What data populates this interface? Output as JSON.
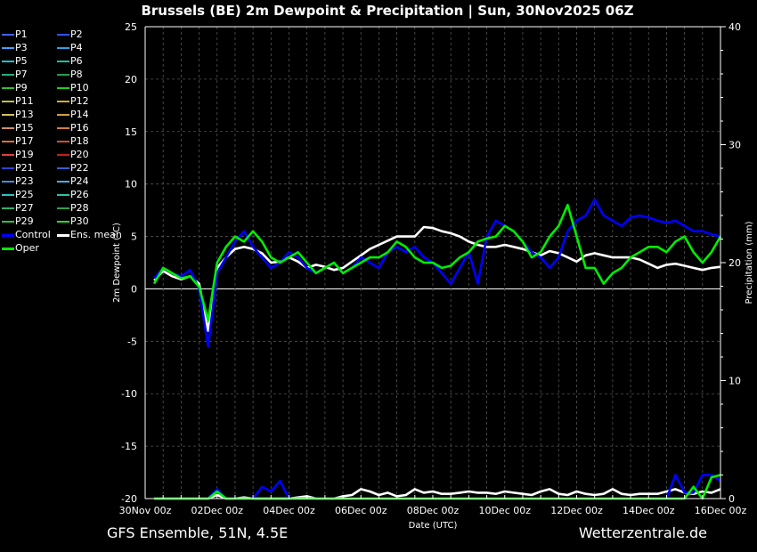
{
  "chart_data": {
    "type": "line",
    "title": "Brussels  (BE)  2m Dewpoint & Precipitation | Sun, 30Nov2025 06Z",
    "xlabel": "Date (UTC)",
    "ylabel": "2m Dewpoint (°C)",
    "y2label": "Precipitation (mm)",
    "ylim": [
      -20,
      25
    ],
    "y2lim": [
      0,
      40
    ],
    "yticks": [
      25,
      20,
      15,
      10,
      5,
      0,
      -5,
      -10,
      -15,
      -20
    ],
    "y2ticks": [
      40,
      30,
      20,
      10,
      0
    ],
    "xticks": [
      "30Nov 00z",
      "02Dec 00z",
      "04Dec 00z",
      "06Dec 00z",
      "08Dec 00z",
      "10Dec 00z",
      "12Dec 00z",
      "14Dec 00z",
      "16Dec 00z"
    ],
    "grid": true,
    "legend_placement": "left",
    "x_hours": [
      6,
      12,
      18,
      24,
      30,
      36,
      42,
      48,
      54,
      60,
      66,
      72,
      78,
      84,
      90,
      96,
      102,
      108,
      114,
      120,
      126,
      132,
      138,
      144,
      150,
      156,
      162,
      168,
      174,
      180,
      186,
      192,
      198,
      204,
      210,
      216,
      222,
      228,
      234,
      240,
      246,
      252,
      258,
      264,
      270,
      276,
      282,
      288,
      294,
      300,
      306,
      312,
      318,
      324,
      330,
      336,
      342,
      348,
      354,
      360,
      366,
      372,
      378,
      384
    ],
    "series": [
      {
        "name": "Ens. mean",
        "color": "#ffffff",
        "values": [
          0.8,
          1.7,
          1.2,
          0.9,
          1.2,
          0.5,
          -4.0,
          2.0,
          3.0,
          3.8,
          4.0,
          3.8,
          3.4,
          2.5,
          2.6,
          3.0,
          2.6,
          2.0,
          2.3,
          2.1,
          1.8,
          2.0,
          2.6,
          3.2,
          3.8,
          4.2,
          4.6,
          5.0,
          5.0,
          5.0,
          5.9,
          5.8,
          5.5,
          5.3,
          5.0,
          4.5,
          4.2,
          4.0,
          4.0,
          4.2,
          4.0,
          3.8,
          3.5,
          3.2,
          3.6,
          3.4,
          3.0,
          2.6,
          3.2,
          3.4,
          3.2,
          3.0,
          3.0,
          3.0,
          2.8,
          2.4,
          2.0,
          2.3,
          2.4,
          2.2,
          2.0,
          1.8,
          2.0,
          2.1
        ]
      },
      {
        "name": "Control",
        "color": "#0000ff",
        "values": [
          1.0,
          2.0,
          1.5,
          1.2,
          1.8,
          0.0,
          -5.5,
          1.5,
          3.0,
          4.5,
          5.5,
          4.0,
          3.0,
          2.0,
          2.5,
          3.5,
          3.0,
          2.0,
          1.5,
          2.0,
          2.5,
          1.5,
          2.0,
          3.0,
          2.5,
          2.0,
          3.5,
          4.0,
          3.5,
          4.0,
          3.0,
          2.5,
          1.5,
          0.5,
          2.0,
          3.5,
          0.5,
          5.0,
          6.5,
          6.0,
          5.5,
          4.5,
          3.5,
          3.0,
          2.0,
          3.0,
          5.5,
          6.5,
          7.0,
          8.5,
          7.0,
          6.5,
          6.0,
          6.8,
          7.0,
          6.8,
          6.5,
          6.3,
          6.5,
          6.0,
          5.5,
          5.5,
          5.2,
          5.0
        ]
      },
      {
        "name": "Oper",
        "color": "#00ee00",
        "values": [
          0.5,
          2.0,
          1.5,
          1.0,
          1.2,
          0.2,
          -3.0,
          2.5,
          4.0,
          5.0,
          4.5,
          5.5,
          4.5,
          3.0,
          2.5,
          3.0,
          3.5,
          2.5,
          1.5,
          2.0,
          2.5,
          1.5,
          2.0,
          2.5,
          3.0,
          3.0,
          3.5,
          4.5,
          4.0,
          3.0,
          2.5,
          2.5,
          2.0,
          2.2,
          3.0,
          3.5,
          4.5,
          4.8,
          5.0,
          6.0,
          5.5,
          4.5,
          3.0,
          3.5,
          5.0,
          6.0,
          8.0,
          5.0,
          2.0,
          2.0,
          0.5,
          1.5,
          2.0,
          3.0,
          3.5,
          4.0,
          4.0,
          3.5,
          4.5,
          5.0,
          3.5,
          2.5,
          3.5,
          5.0
        ]
      }
    ],
    "precip_series": [
      {
        "name": "Ens. mean",
        "color": "#ffffff",
        "values": [
          0,
          0,
          0,
          0,
          0,
          0,
          0,
          0.3,
          0,
          0,
          0.1,
          0,
          0,
          0,
          0,
          0,
          0.1,
          0.2,
          0,
          0,
          0,
          0.2,
          0.3,
          0.8,
          0.6,
          0.3,
          0.5,
          0.2,
          0.3,
          0.8,
          0.5,
          0.6,
          0.4,
          0.4,
          0.5,
          0.6,
          0.5,
          0.5,
          0.4,
          0.6,
          0.5,
          0.4,
          0.3,
          0.6,
          0.8,
          0.4,
          0.3,
          0.6,
          0.4,
          0.3,
          0.4,
          0.8,
          0.4,
          0.3,
          0.4,
          0.4,
          0.4,
          0.6,
          0.8,
          0.5,
          0.4,
          0.6,
          0.5,
          0.8
        ]
      },
      {
        "name": "Control",
        "color": "#0000ff",
        "values": [
          0,
          0,
          0,
          0,
          0,
          0,
          0,
          0.8,
          0,
          0,
          0,
          0,
          1.0,
          0.6,
          1.5,
          0,
          0,
          0,
          0,
          0,
          0,
          0,
          0,
          0,
          0,
          0,
          0,
          0,
          0,
          0,
          0,
          0,
          0,
          0,
          0,
          0,
          0,
          0,
          0,
          0,
          0,
          0,
          0,
          0,
          0,
          0,
          0,
          0,
          0,
          0,
          0,
          0,
          0,
          0,
          0,
          0,
          0,
          0,
          2.0,
          0.5,
          0.5,
          2.0,
          2.0,
          1.5
        ]
      },
      {
        "name": "Oper",
        "color": "#00ee00",
        "values": [
          0,
          0,
          0,
          0,
          0,
          0,
          0,
          0.6,
          0,
          0,
          0,
          0,
          0,
          0,
          0,
          0,
          0,
          0,
          0,
          0,
          0,
          0,
          0,
          0,
          0,
          0,
          0,
          0,
          0,
          0,
          0,
          0,
          0,
          0,
          0,
          0,
          0,
          0,
          0,
          0,
          0,
          0,
          0,
          0,
          0,
          0,
          0,
          0,
          0,
          0,
          0,
          0,
          0,
          0,
          0,
          0,
          0,
          0,
          0,
          0,
          1.0,
          0,
          1.8,
          2.0
        ]
      }
    ]
  },
  "legend": {
    "items": [
      {
        "label": "P1",
        "color": "#4060ff"
      },
      {
        "label": "P2",
        "color": "#3050ff"
      },
      {
        "label": "P3",
        "color": "#40a0ff"
      },
      {
        "label": "P4",
        "color": "#30a0e0"
      },
      {
        "label": "P5",
        "color": "#20c0d0"
      },
      {
        "label": "P6",
        "color": "#20c0a0"
      },
      {
        "label": "P7",
        "color": "#20b080"
      },
      {
        "label": "P8",
        "color": "#20a050"
      },
      {
        "label": "P9",
        "color": "#30c030"
      },
      {
        "label": "P10",
        "color": "#20d020"
      },
      {
        "label": "P11",
        "color": "#c0c040"
      },
      {
        "label": "P12",
        "color": "#d0b030"
      },
      {
        "label": "P13",
        "color": "#d0c060"
      },
      {
        "label": "P14",
        "color": "#d0a040"
      },
      {
        "label": "P15",
        "color": "#d09060"
      },
      {
        "label": "P16",
        "color": "#d08040"
      },
      {
        "label": "P17",
        "color": "#e07030"
      },
      {
        "label": "P18",
        "color": "#d05030"
      },
      {
        "label": "P19",
        "color": "#e04040"
      },
      {
        "label": "P20",
        "color": "#c02020"
      },
      {
        "label": "P21",
        "color": "#3040d0"
      },
      {
        "label": "P22",
        "color": "#3060d0"
      },
      {
        "label": "P23",
        "color": "#4090e0"
      },
      {
        "label": "P24",
        "color": "#40b0e0"
      },
      {
        "label": "P25",
        "color": "#30c0c0"
      },
      {
        "label": "P26",
        "color": "#30c0a0"
      },
      {
        "label": "P27",
        "color": "#30b070"
      },
      {
        "label": "P28",
        "color": "#30a050"
      },
      {
        "label": "P29",
        "color": "#30c040"
      },
      {
        "label": "P30",
        "color": "#20e020"
      },
      {
        "label": "Control",
        "color": "#0000ff"
      },
      {
        "label": "Ens. mean",
        "color": "#ffffff"
      },
      {
        "label": "Oper",
        "color": "#00ee00"
      }
    ]
  },
  "footer": {
    "left": "GFS Ensemble, 51N, 4.5E",
    "right": "Wetterzentrale.de"
  }
}
